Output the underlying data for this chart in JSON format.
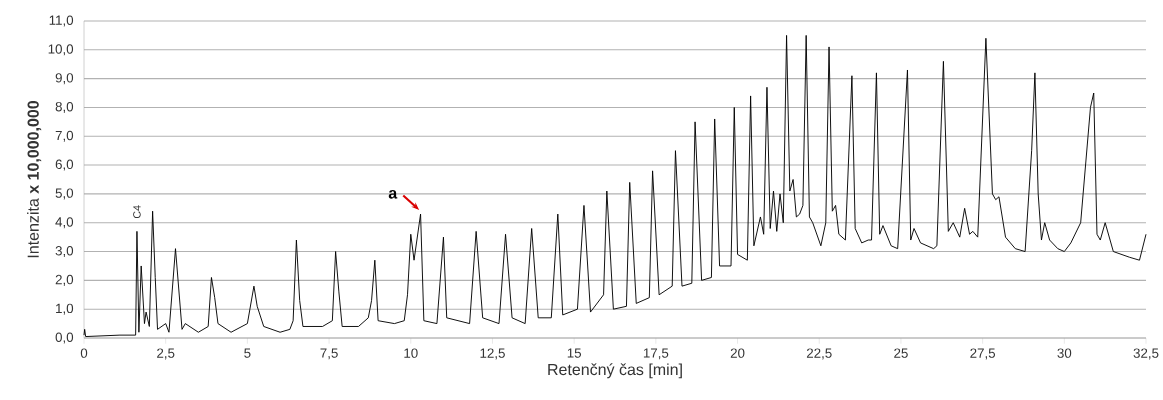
{
  "chart_data": {
    "type": "line",
    "xlabel": "Retenčný čas [min]",
    "ylabel": "Intenzita  **x 10,000,000**",
    "xlim": [
      0,
      32.5
    ],
    "ylim": [
      0,
      11
    ],
    "xticks": [
      0,
      {
        "value": 2.5,
        "label": "2,5"
      },
      5,
      {
        "value": 7.5,
        "label": "7,5"
      },
      10,
      {
        "value": 12.5,
        "label": "12,5"
      },
      15,
      {
        "value": 17.5,
        "label": "17,5"
      },
      20,
      {
        "value": 22.5,
        "label": "22,5"
      },
      25,
      {
        "value": 27.5,
        "label": "27,5"
      },
      30,
      {
        "value": 32.5,
        "label": "32,5"
      }
    ],
    "yticks": [
      {
        "value": 0,
        "label": "0,0"
      },
      {
        "value": 1,
        "label": "1,0"
      },
      {
        "value": 2,
        "label": "2,0"
      },
      {
        "value": 3,
        "label": "3,0"
      },
      {
        "value": 4,
        "label": "4,0"
      },
      {
        "value": 5,
        "label": "5,0"
      },
      {
        "value": 6,
        "label": "6,0"
      },
      {
        "value": 7,
        "label": "7,0"
      },
      {
        "value": 8,
        "label": "8,0"
      },
      {
        "value": 9,
        "label": "9,0"
      },
      {
        "value": 10,
        "label": "10,0"
      },
      {
        "value": 11,
        "label": "11,0"
      }
    ],
    "grid": "y",
    "marker": "none",
    "line_style": "solid",
    "annotations": [
      {
        "text": "C4",
        "x": 1.62,
        "y": 3.7
      },
      {
        "text": "a",
        "x": 10.3,
        "y": 4.3
      }
    ],
    "series": [
      {
        "color": "#000000",
        "x": [
          0,
          0.02,
          0.05,
          1.1,
          1.58,
          1.62,
          1.68,
          1.75,
          1.85,
          1.9,
          2.0,
          2.1,
          2.18,
          2.25,
          2.5,
          2.6,
          2.8,
          2.9,
          3.0,
          3.1,
          3.5,
          3.8,
          3.9,
          4.0,
          4.1,
          4.5,
          5.0,
          5.2,
          5.3,
          5.5,
          6.0,
          6.3,
          6.4,
          6.5,
          6.6,
          6.7,
          7.3,
          7.6,
          7.7,
          7.8,
          7.9,
          8.4,
          8.7,
          8.8,
          8.9,
          9.0,
          9.5,
          9.8,
          9.9,
          10.0,
          10.1,
          10.3,
          10.4,
          10.8,
          11.0,
          11.1,
          11.8,
          12.0,
          12.2,
          12.7,
          12.9,
          13.1,
          13.5,
          13.7,
          13.9,
          14.3,
          14.5,
          14.65,
          15.1,
          15.3,
          15.5,
          15.9,
          16.0,
          16.2,
          16.6,
          16.7,
          16.9,
          17.3,
          17.4,
          17.6,
          18.0,
          18.1,
          18.3,
          18.6,
          18.7,
          18.9,
          19.2,
          19.3,
          19.45,
          19.8,
          19.9,
          20.0,
          20.3,
          20.4,
          20.5,
          20.7,
          20.8,
          20.9,
          21.0,
          21.1,
          21.2,
          21.3,
          21.4,
          21.5,
          21.6,
          21.7,
          21.8,
          21.9,
          22.0,
          22.1,
          22.2,
          22.3,
          22.55,
          22.7,
          22.8,
          22.9,
          23.0,
          23.1,
          23.3,
          23.5,
          23.6,
          23.8,
          24.0,
          24.1,
          24.25,
          24.35,
          24.45,
          24.7,
          24.9,
          25.2,
          25.3,
          25.4,
          25.6,
          26.0,
          26.1,
          26.3,
          26.45,
          26.6,
          26.8,
          26.95,
          27.1,
          27.2,
          27.35,
          27.6,
          27.8,
          27.9,
          28.0,
          28.2,
          28.5,
          28.8,
          29.0,
          29.1,
          29.2,
          29.3,
          29.4,
          29.55,
          29.8,
          30.0,
          30.2,
          30.5,
          30.8,
          30.9,
          31.0,
          31.1,
          31.25,
          31.5,
          32.0,
          32.3,
          32.5
        ],
        "values": [
          0.1,
          0.3,
          0.05,
          0.1,
          0.1,
          3.7,
          0.2,
          2.5,
          0.5,
          0.9,
          0.4,
          4.4,
          2.1,
          0.3,
          0.5,
          0.2,
          3.1,
          1.7,
          0.3,
          0.5,
          0.2,
          0.4,
          2.1,
          1.4,
          0.5,
          0.2,
          0.5,
          1.8,
          1.1,
          0.4,
          0.2,
          0.3,
          0.6,
          3.4,
          1.3,
          0.4,
          0.4,
          0.6,
          3.0,
          1.6,
          0.4,
          0.4,
          0.7,
          1.3,
          2.7,
          0.6,
          0.5,
          0.6,
          1.5,
          3.6,
          2.7,
          4.3,
          0.6,
          0.5,
          3.5,
          0.7,
          0.5,
          3.7,
          0.7,
          0.5,
          3.6,
          0.7,
          0.5,
          3.8,
          0.7,
          0.7,
          4.3,
          0.8,
          1.0,
          4.6,
          0.9,
          1.5,
          5.1,
          1.0,
          1.1,
          5.4,
          1.2,
          1.4,
          5.8,
          1.5,
          1.8,
          6.5,
          1.8,
          1.9,
          7.5,
          2.0,
          2.1,
          7.6,
          2.5,
          2.5,
          8.0,
          2.9,
          2.7,
          8.4,
          3.2,
          4.2,
          3.6,
          8.7,
          3.8,
          5.1,
          3.7,
          5.0,
          4.0,
          10.5,
          5.1,
          5.5,
          4.2,
          4.3,
          4.6,
          10.5,
          4.2,
          4.0,
          3.2,
          4.0,
          10.1,
          4.4,
          4.6,
          3.6,
          3.4,
          9.1,
          3.8,
          3.3,
          3.4,
          3.4,
          9.2,
          3.6,
          3.9,
          3.2,
          3.1,
          9.3,
          3.4,
          3.8,
          3.3,
          3.1,
          3.2,
          9.6,
          3.7,
          4.0,
          3.5,
          4.5,
          3.6,
          3.7,
          3.5,
          10.4,
          5.0,
          4.8,
          4.9,
          3.5,
          3.1,
          3.0,
          6.5,
          9.2,
          5.0,
          3.4,
          4.0,
          3.4,
          3.1,
          3.0,
          3.3,
          4.0,
          8.0,
          8.5,
          3.6,
          3.4,
          4.0,
          3.0,
          2.8,
          2.7,
          3.6
        ]
      }
    ]
  }
}
